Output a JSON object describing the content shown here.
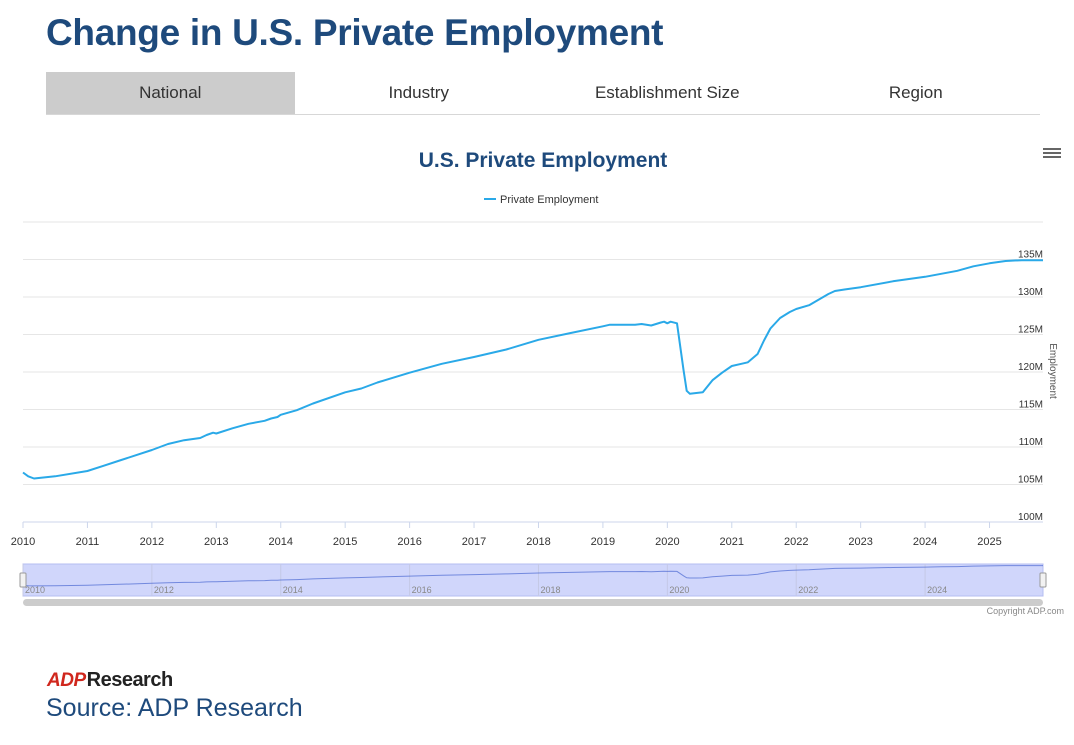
{
  "page": {
    "title": "Change in U.S. Private Employment"
  },
  "tabs": [
    {
      "label": "National",
      "active": true
    },
    {
      "label": "Industry",
      "active": false
    },
    {
      "label": "Establishment Size",
      "active": false
    },
    {
      "label": "Region",
      "active": false
    }
  ],
  "colors": {
    "series": "#2aa9e8",
    "title": "#1e4a7c",
    "navigator_fill": "#d0d6fb"
  },
  "icons": {
    "menu": "hamburger-menu-icon"
  },
  "footer": {
    "copyright": "Copyright ADP.com",
    "logo_adp": "ADP",
    "logo_research": "Research",
    "source": "Source: ADP Research"
  },
  "chart_data": {
    "type": "line",
    "title": "U.S. Private Employment",
    "legend": [
      "Private Employment"
    ],
    "legend_position": "top-center",
    "ylabel": "Employment",
    "ylim": [
      100,
      140
    ],
    "yticks": [
      100,
      105,
      110,
      115,
      120,
      125,
      130,
      135
    ],
    "ytick_labels": [
      "100M",
      "105M",
      "110M",
      "115M",
      "120M",
      "125M",
      "130M",
      "135M"
    ],
    "xlim": [
      2010,
      2025.83
    ],
    "xticks": [
      "2010",
      "2011",
      "2012",
      "2013",
      "2014",
      "2015",
      "2016",
      "2017",
      "2018",
      "2019",
      "2020",
      "2021",
      "2022",
      "2023",
      "2024",
      "2025"
    ],
    "navigator_ticks": [
      "2010",
      "2012",
      "2014",
      "2016",
      "2018",
      "2020",
      "2022",
      "2024"
    ],
    "units": "millions",
    "series": [
      {
        "name": "Private Employment",
        "x": [
          2010.0,
          2010.08,
          2010.17,
          2010.5,
          2011.0,
          2011.25,
          2011.5,
          2012.0,
          2012.25,
          2012.5,
          2012.75,
          2012.85,
          2012.95,
          2013.0,
          2013.25,
          2013.5,
          2013.75,
          2013.85,
          2013.95,
          2014.0,
          2014.25,
          2014.5,
          2015.0,
          2015.25,
          2015.5,
          2016.0,
          2016.5,
          2017.0,
          2017.5,
          2018.0,
          2018.5,
          2019.0,
          2019.1,
          2019.5,
          2019.6,
          2019.75,
          2019.9,
          2019.95,
          2020.0,
          2020.05,
          2020.15,
          2020.25,
          2020.3,
          2020.35,
          2020.45,
          2020.55,
          2020.7,
          2020.85,
          2021.0,
          2021.15,
          2021.25,
          2021.4,
          2021.5,
          2021.6,
          2021.75,
          2021.9,
          2022.0,
          2022.2,
          2022.3,
          2022.5,
          2022.6,
          2022.75,
          2023.0,
          2023.5,
          2024.0,
          2024.25,
          2024.5,
          2024.75,
          2025.0,
          2025.25,
          2025.5,
          2025.83
        ],
        "values": [
          106.6,
          106.1,
          105.8,
          106.1,
          106.8,
          107.5,
          108.2,
          109.6,
          110.4,
          110.9,
          111.2,
          111.6,
          111.9,
          111.8,
          112.5,
          113.1,
          113.5,
          113.8,
          114.0,
          114.3,
          114.9,
          115.8,
          117.3,
          117.8,
          118.6,
          119.9,
          121.1,
          122.0,
          123.0,
          124.3,
          125.2,
          126.1,
          126.3,
          126.3,
          126.4,
          126.2,
          126.6,
          126.7,
          126.5,
          126.7,
          126.5,
          120.3,
          117.5,
          117.1,
          117.2,
          117.3,
          118.9,
          119.9,
          120.8,
          121.1,
          121.3,
          122.4,
          124.2,
          125.8,
          127.2,
          128.0,
          128.4,
          128.9,
          129.4,
          130.4,
          130.8,
          131.0,
          131.3,
          132.1,
          132.7,
          133.1,
          133.5,
          134.1,
          134.5,
          134.8,
          134.9,
          134.9
        ]
      }
    ]
  }
}
